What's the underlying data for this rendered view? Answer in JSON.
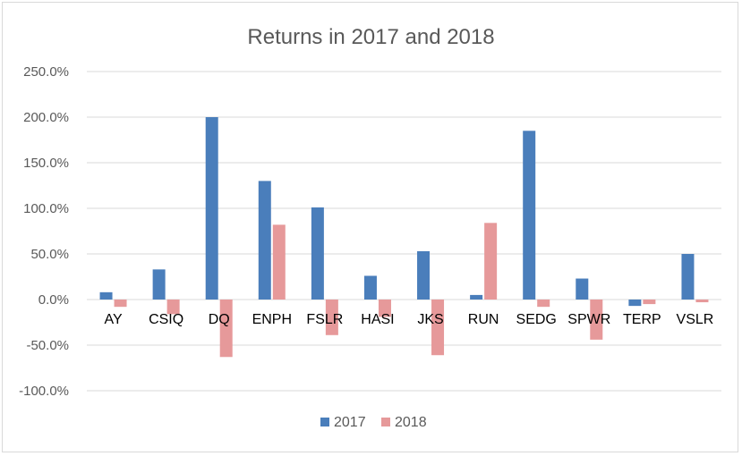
{
  "chart_data": {
    "type": "bar",
    "title": "Returns in 2017 and 2018",
    "xlabel": "",
    "ylabel": "",
    "categories": [
      "AY",
      "CSIQ",
      "DQ",
      "ENPH",
      "FSLR",
      "HASI",
      "JKS",
      "RUN",
      "SEDG",
      "SPWR",
      "TERP",
      "VSLR"
    ],
    "series": [
      {
        "name": "2017",
        "color": "#4a7ebb",
        "values": [
          8,
          33,
          200,
          130,
          101,
          26,
          53,
          5,
          185,
          23,
          -7,
          50
        ]
      },
      {
        "name": "2018",
        "color": "#e6999a",
        "values": [
          -8,
          -16,
          -63,
          82,
          -39,
          -19,
          -61,
          84,
          -8,
          -44,
          -5,
          -3
        ]
      }
    ],
    "ylim": [
      -100,
      250
    ],
    "yticks": [
      -100,
      -50,
      0,
      50,
      100,
      150,
      200,
      250
    ],
    "ytick_labels": [
      "-100.0%",
      "-50.0%",
      "0.0%",
      "50.0%",
      "100.0%",
      "150.0%",
      "200.0%",
      "250.0%"
    ],
    "grid": true,
    "legend": "bottom"
  }
}
